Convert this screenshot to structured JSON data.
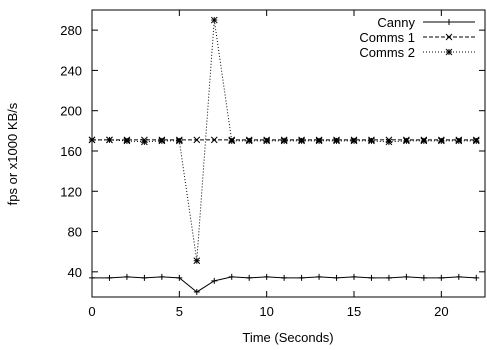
{
  "chart_data": {
    "type": "line",
    "title": "",
    "xlabel": "Time (Seconds)",
    "ylabel": "fps or x1000 KB/s",
    "xlim": [
      0,
      22.5
    ],
    "ylim": [
      15,
      300
    ],
    "x_ticks": [
      0,
      5,
      10,
      15,
      20
    ],
    "x_tick_labels": [
      "0",
      "5",
      "10",
      "15",
      "20"
    ],
    "y_ticks": [
      40,
      80,
      120,
      160,
      200,
      240,
      280
    ],
    "y_tick_labels": [
      "40",
      "80",
      "120",
      "160",
      "200",
      "240",
      "280"
    ],
    "grid": false,
    "legend_position": "top-right",
    "x": [
      0,
      1,
      2,
      3,
      4,
      5,
      6,
      7,
      8,
      9,
      10,
      11,
      12,
      13,
      14,
      15,
      16,
      17,
      18,
      19,
      20,
      21,
      22
    ],
    "series": [
      {
        "name": "Canny",
        "style": "solid",
        "marker": "plus",
        "values": [
          34,
          34,
          35,
          34,
          35,
          34,
          20,
          31,
          35,
          34,
          35,
          34,
          34,
          35,
          34,
          35,
          34,
          34,
          35,
          34,
          34,
          35,
          34
        ]
      },
      {
        "name": "Comms 1",
        "style": "dashed",
        "marker": "cross",
        "values": [
          171,
          171,
          171,
          171,
          171,
          171,
          171,
          171,
          171,
          171,
          171,
          171,
          171,
          171,
          171,
          171,
          171,
          171,
          171,
          171,
          171,
          171,
          171
        ]
      },
      {
        "name": "Comms 2",
        "style": "dotted",
        "marker": "star",
        "values": [
          171,
          171,
          170,
          169,
          170,
          170,
          51,
          290,
          170,
          170,
          170,
          170,
          170,
          170,
          170,
          170,
          170,
          169,
          170,
          170,
          170,
          170,
          170
        ]
      }
    ]
  }
}
